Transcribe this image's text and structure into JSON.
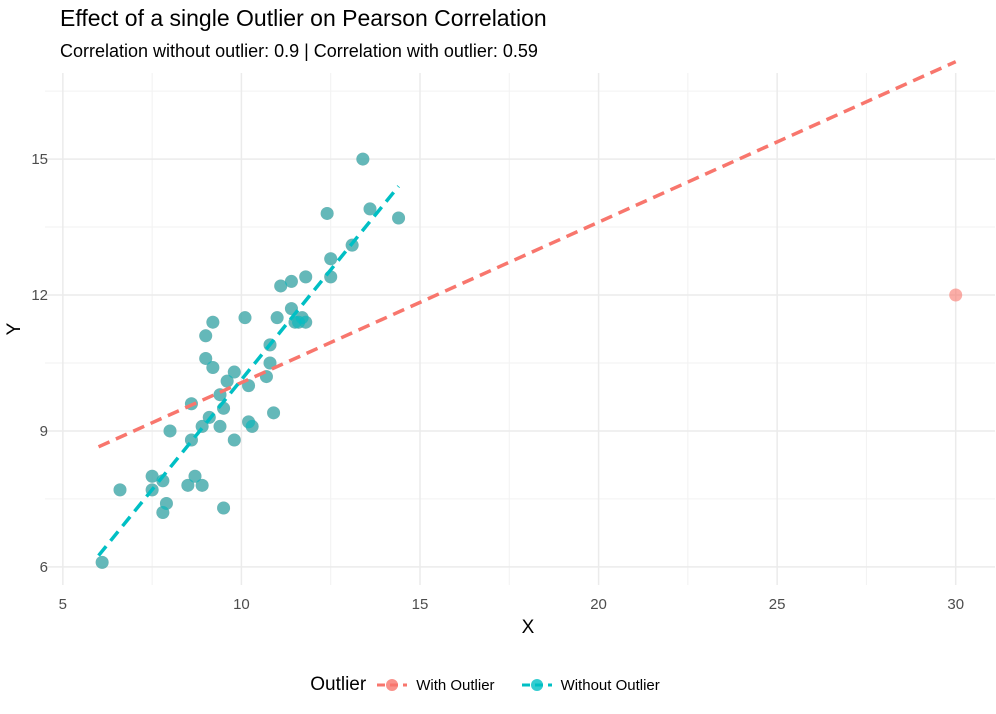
{
  "chart_data": {
    "type": "scatter",
    "title": "Effect of a single Outlier on Pearson Correlation",
    "subtitle": "Correlation without outlier: 0.9 | Correlation with outlier: 0.59",
    "xlabel": "X",
    "ylabel": "Y",
    "xlim": [
      4.5,
      31.1
    ],
    "ylim": [
      5.6,
      16.9
    ],
    "x_ticks": [
      5,
      10,
      15,
      20,
      25,
      30
    ],
    "y_ticks": [
      6,
      9,
      12,
      15
    ],
    "grid": true,
    "legend_title": "Outlier",
    "legend_position": "bottom",
    "series": [
      {
        "name": "With Outlier",
        "color": "#F8766D",
        "points": [
          {
            "x": 6.1,
            "y": 6.1
          },
          {
            "x": 6.6,
            "y": 7.7
          },
          {
            "x": 7.5,
            "y": 8.0
          },
          {
            "x": 7.5,
            "y": 7.7
          },
          {
            "x": 7.8,
            "y": 7.9
          },
          {
            "x": 7.8,
            "y": 7.2
          },
          {
            "x": 7.9,
            "y": 7.4
          },
          {
            "x": 8.0,
            "y": 9.0
          },
          {
            "x": 8.5,
            "y": 7.8
          },
          {
            "x": 8.6,
            "y": 9.6
          },
          {
            "x": 8.6,
            "y": 8.8
          },
          {
            "x": 8.7,
            "y": 8.0
          },
          {
            "x": 8.9,
            "y": 7.8
          },
          {
            "x": 8.9,
            "y": 9.1
          },
          {
            "x": 9.0,
            "y": 10.6
          },
          {
            "x": 9.0,
            "y": 11.1
          },
          {
            "x": 9.1,
            "y": 9.3
          },
          {
            "x": 9.2,
            "y": 11.4
          },
          {
            "x": 9.2,
            "y": 10.4
          },
          {
            "x": 9.4,
            "y": 9.1
          },
          {
            "x": 9.4,
            "y": 9.8
          },
          {
            "x": 9.5,
            "y": 9.5
          },
          {
            "x": 9.5,
            "y": 7.3
          },
          {
            "x": 9.6,
            "y": 10.1
          },
          {
            "x": 9.8,
            "y": 10.3
          },
          {
            "x": 9.8,
            "y": 8.8
          },
          {
            "x": 10.1,
            "y": 11.5
          },
          {
            "x": 10.2,
            "y": 10.0
          },
          {
            "x": 10.2,
            "y": 9.2
          },
          {
            "x": 10.3,
            "y": 9.1
          },
          {
            "x": 10.7,
            "y": 10.2
          },
          {
            "x": 10.8,
            "y": 10.5
          },
          {
            "x": 10.8,
            "y": 10.9
          },
          {
            "x": 10.9,
            "y": 9.4
          },
          {
            "x": 11.0,
            "y": 11.5
          },
          {
            "x": 11.1,
            "y": 12.2
          },
          {
            "x": 11.4,
            "y": 12.3
          },
          {
            "x": 11.4,
            "y": 11.7
          },
          {
            "x": 11.5,
            "y": 11.4
          },
          {
            "x": 11.6,
            "y": 11.4
          },
          {
            "x": 11.7,
            "y": 11.5
          },
          {
            "x": 11.8,
            "y": 11.4
          },
          {
            "x": 11.8,
            "y": 12.4
          },
          {
            "x": 12.4,
            "y": 13.8
          },
          {
            "x": 12.5,
            "y": 12.8
          },
          {
            "x": 12.5,
            "y": 12.4
          },
          {
            "x": 13.1,
            "y": 13.1
          },
          {
            "x": 13.4,
            "y": 15.0
          },
          {
            "x": 13.6,
            "y": 13.9
          },
          {
            "x": 14.4,
            "y": 13.7
          },
          {
            "x": 30.0,
            "y": 12.0
          }
        ],
        "fit_line": {
          "x1": 6.0,
          "y1": 8.65,
          "x2": 30.0,
          "y2": 17.15
        }
      },
      {
        "name": "Without Outlier",
        "color": "#00BFC4",
        "points": [
          {
            "x": 6.1,
            "y": 6.1
          },
          {
            "x": 6.6,
            "y": 7.7
          },
          {
            "x": 7.5,
            "y": 8.0
          },
          {
            "x": 7.5,
            "y": 7.7
          },
          {
            "x": 7.8,
            "y": 7.9
          },
          {
            "x": 7.8,
            "y": 7.2
          },
          {
            "x": 7.9,
            "y": 7.4
          },
          {
            "x": 8.0,
            "y": 9.0
          },
          {
            "x": 8.5,
            "y": 7.8
          },
          {
            "x": 8.6,
            "y": 9.6
          },
          {
            "x": 8.6,
            "y": 8.8
          },
          {
            "x": 8.7,
            "y": 8.0
          },
          {
            "x": 8.9,
            "y": 7.8
          },
          {
            "x": 8.9,
            "y": 9.1
          },
          {
            "x": 9.0,
            "y": 10.6
          },
          {
            "x": 9.0,
            "y": 11.1
          },
          {
            "x": 9.1,
            "y": 9.3
          },
          {
            "x": 9.2,
            "y": 11.4
          },
          {
            "x": 9.2,
            "y": 10.4
          },
          {
            "x": 9.4,
            "y": 9.1
          },
          {
            "x": 9.4,
            "y": 9.8
          },
          {
            "x": 9.5,
            "y": 9.5
          },
          {
            "x": 9.5,
            "y": 7.3
          },
          {
            "x": 9.6,
            "y": 10.1
          },
          {
            "x": 9.8,
            "y": 10.3
          },
          {
            "x": 9.8,
            "y": 8.8
          },
          {
            "x": 10.1,
            "y": 11.5
          },
          {
            "x": 10.2,
            "y": 10.0
          },
          {
            "x": 10.2,
            "y": 9.2
          },
          {
            "x": 10.3,
            "y": 9.1
          },
          {
            "x": 10.7,
            "y": 10.2
          },
          {
            "x": 10.8,
            "y": 10.5
          },
          {
            "x": 10.8,
            "y": 10.9
          },
          {
            "x": 10.9,
            "y": 9.4
          },
          {
            "x": 11.0,
            "y": 11.5
          },
          {
            "x": 11.1,
            "y": 12.2
          },
          {
            "x": 11.4,
            "y": 12.3
          },
          {
            "x": 11.4,
            "y": 11.7
          },
          {
            "x": 11.5,
            "y": 11.4
          },
          {
            "x": 11.6,
            "y": 11.4
          },
          {
            "x": 11.7,
            "y": 11.5
          },
          {
            "x": 11.8,
            "y": 11.4
          },
          {
            "x": 11.8,
            "y": 12.4
          },
          {
            "x": 12.4,
            "y": 13.8
          },
          {
            "x": 12.5,
            "y": 12.8
          },
          {
            "x": 12.5,
            "y": 12.4
          },
          {
            "x": 13.1,
            "y": 13.1
          },
          {
            "x": 13.4,
            "y": 15.0
          },
          {
            "x": 13.6,
            "y": 13.9
          },
          {
            "x": 14.4,
            "y": 13.7
          }
        ],
        "fit_line": {
          "x1": 6.0,
          "y1": 6.25,
          "x2": 14.4,
          "y2": 14.4
        }
      }
    ]
  }
}
